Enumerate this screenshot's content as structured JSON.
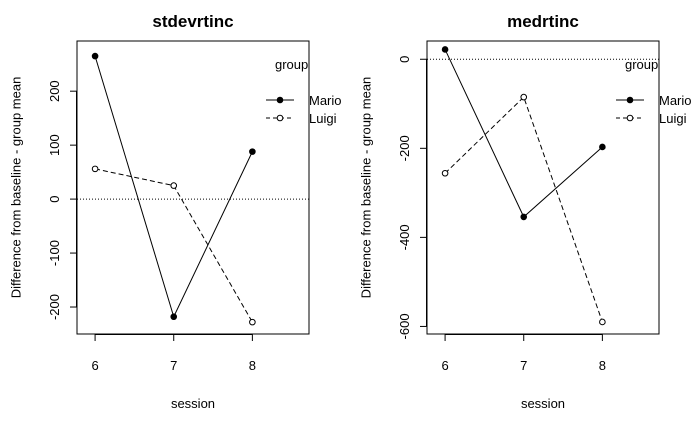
{
  "chart_data": [
    {
      "type": "line",
      "title": "stdevrtinc",
      "xlabel": "session",
      "ylabel": "Difference from baseline - group mean",
      "x": [
        6,
        7,
        8
      ],
      "xlim": [
        5.77,
        8.72
      ],
      "ylim": [
        -250,
        293
      ],
      "xticks": [
        6,
        7,
        8
      ],
      "yticks": [
        -200,
        -100,
        0,
        100,
        200
      ],
      "reference_line": 0,
      "legend_title": "group",
      "legend_position": "top-right",
      "series": [
        {
          "name": "Mario",
          "values": [
            265,
            -218,
            88
          ],
          "marker": "filled-circle",
          "line": "solid"
        },
        {
          "name": "Luigi",
          "values": [
            56,
            25,
            -228
          ],
          "marker": "open-circle",
          "line": "dashed"
        }
      ]
    },
    {
      "type": "line",
      "title": "medrtinc",
      "xlabel": "session",
      "ylabel": "Difference from baseline - group mean",
      "x": [
        6,
        7,
        8
      ],
      "xlim": [
        5.77,
        8.72
      ],
      "ylim": [
        -617,
        41
      ],
      "xticks": [
        6,
        7,
        8
      ],
      "yticks": [
        -600,
        -400,
        -200,
        0
      ],
      "reference_line": 0,
      "legend_title": "group",
      "legend_position": "top-right",
      "series": [
        {
          "name": "Mario",
          "values": [
            22,
            -354,
            -197
          ],
          "marker": "filled-circle",
          "line": "solid"
        },
        {
          "name": "Luigi",
          "values": [
            -256,
            -85,
            -590
          ],
          "marker": "open-circle",
          "line": "dashed"
        }
      ]
    }
  ]
}
